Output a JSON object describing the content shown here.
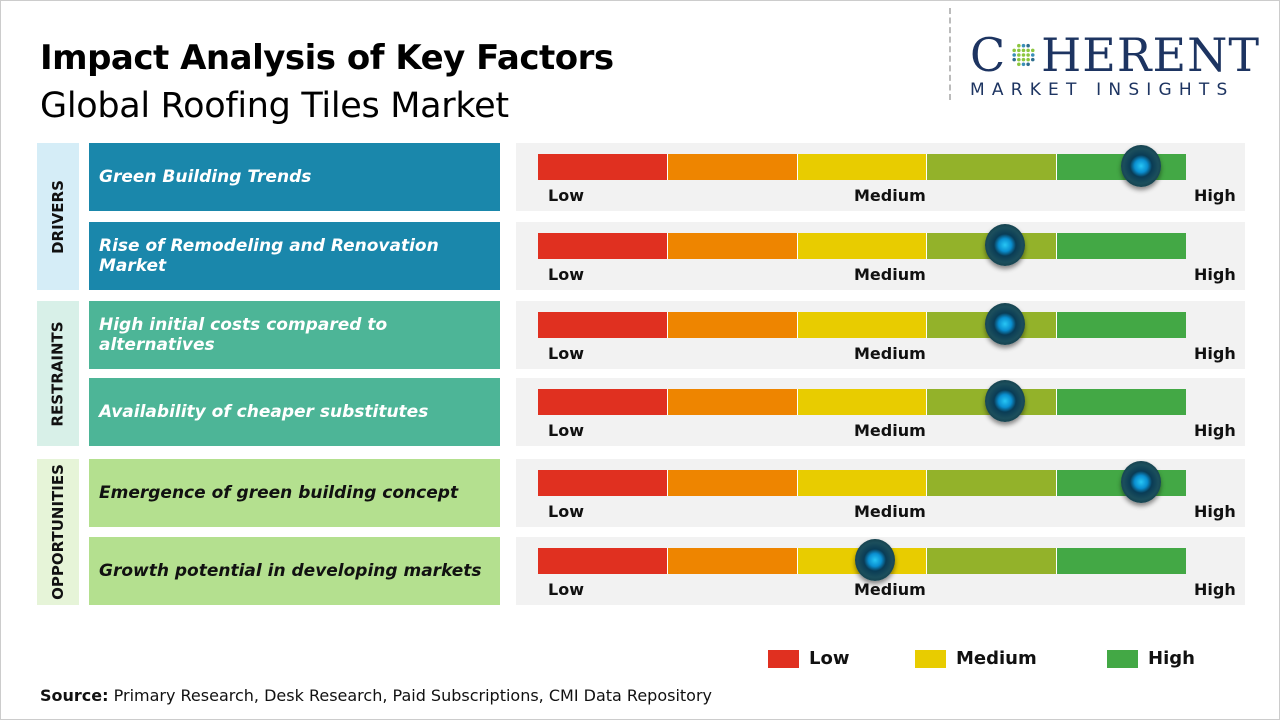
{
  "header": {
    "title": "Impact Analysis of Key Factors",
    "subtitle": "Global Roofing Tiles Market"
  },
  "logo": {
    "main_left": "C",
    "main_right": "HERENT",
    "sub": "MARKET INSIGHTS"
  },
  "colors": {
    "low": "#e03020",
    "low_mid": "#ee8500",
    "medium": "#e8cc00",
    "mid_high": "#93b22a",
    "high": "#43a845",
    "drivers": "#1a87ab",
    "restraints": "#4db597",
    "opportunities": "#b4e08f"
  },
  "chart_data": {
    "type": "gauge",
    "scale_labels": [
      "Low",
      "Medium",
      "High"
    ],
    "categories": [
      {
        "name": "DRIVERS",
        "factors": [
          {
            "label": "Green Building Trends",
            "impact": 0.93
          },
          {
            "label": "Rise of Remodeling and Renovation Market",
            "impact": 0.72
          }
        ]
      },
      {
        "name": "RESTRAINTS",
        "factors": [
          {
            "label": "High initial costs compared to alternatives",
            "impact": 0.72
          },
          {
            "label": "Availability of cheaper substitutes",
            "impact": 0.72
          }
        ]
      },
      {
        "name": "OPPORTUNITIES",
        "factors": [
          {
            "label": "Emergence of green building concept",
            "impact": 0.93
          },
          {
            "label": "Growth potential in developing markets",
            "impact": 0.52
          }
        ]
      }
    ],
    "legend": [
      {
        "label": "Low",
        "color": "#e03020"
      },
      {
        "label": "Medium",
        "color": "#e8cc00"
      },
      {
        "label": "High",
        "color": "#43a845"
      }
    ],
    "legend_placement": "bottom-right"
  },
  "footer": {
    "source_label": "Source:",
    "source_text": " Primary Research, Desk Research, Paid Subscriptions, CMI Data Repository"
  }
}
